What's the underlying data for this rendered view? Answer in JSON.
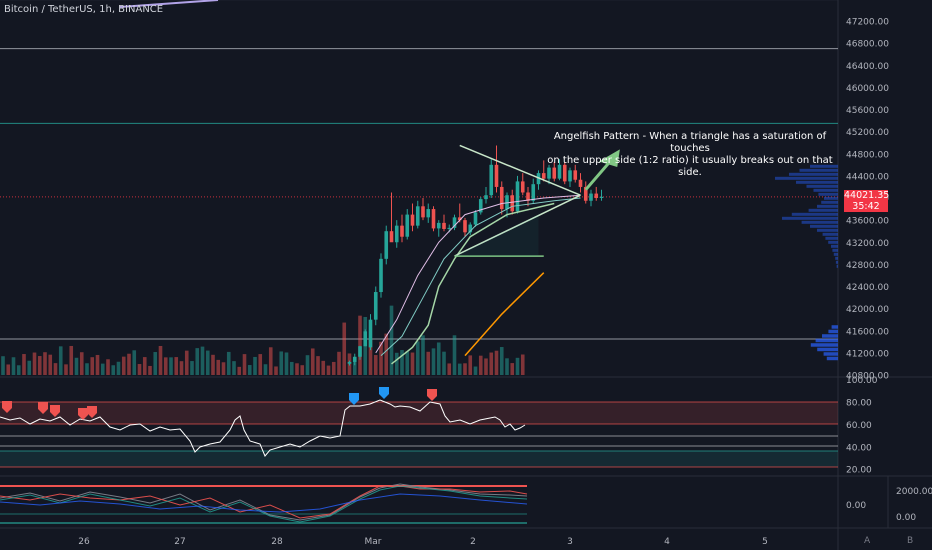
{
  "header": {
    "title": "Bitcoin / TetherUS, 1h, BINANCE"
  },
  "annotation": {
    "line1": "Angelfish Pattern - When a triangle has a saturation of touches",
    "line2": "on the upper side (1:2 ratio) it usually breaks out on that side."
  },
  "price_tag": {
    "price": "44021.35",
    "countdown": "35:42"
  },
  "controls": {
    "auto": "A",
    "bottom": "B"
  },
  "colors": {
    "background": "#131722",
    "up": "#26a69a",
    "down": "#ef5350",
    "accent_red": "#f23645",
    "rsi_line": "#ffffff",
    "triangle": "#c8e6c9"
  },
  "chart_data": [
    {
      "type": "candlestick",
      "symbol": "Bitcoin / TetherUS",
      "interval": "1h",
      "exchange": "BINANCE",
      "y_axis_ticks": [
        "47200.00",
        "46800.00",
        "46400.00",
        "46000.00",
        "45600.00",
        "45200.00",
        "44800.00",
        "44400.00",
        "44000.00",
        "43600.00",
        "43200.00",
        "42800.00",
        "42400.00",
        "42000.00",
        "41600.00",
        "41200.00",
        "40800.00"
      ],
      "ylim": [
        40800,
        47400
      ],
      "x_axis_ticks": [
        "26",
        "27",
        "28",
        "Mar",
        "2",
        "3",
        "4",
        "5"
      ],
      "last_price": 44021.35,
      "horizontal_levels": [
        46700,
        45350,
        41450
      ],
      "candles": [
        [
          43440,
          43520,
          43380,
          43460
        ],
        [
          43460,
          43700,
          43420,
          43650
        ],
        [
          43650,
          43900,
          43560,
          43600
        ],
        [
          43600,
          43640,
          43300,
          43380
        ],
        [
          43380,
          43560,
          43330,
          43520
        ],
        [
          43520,
          43780,
          43480,
          43740
        ],
        [
          43740,
          44020,
          43700,
          43980
        ],
        [
          43980,
          44200,
          43900,
          44050
        ],
        [
          44050,
          44700,
          44000,
          44600
        ],
        [
          44600,
          44950,
          44100,
          44200
        ],
        [
          44200,
          44300,
          43700,
          43800
        ],
        [
          43800,
          44100,
          43650,
          44050
        ],
        [
          44050,
          44150,
          43700,
          43760
        ],
        [
          43760,
          44400,
          43720,
          44300
        ],
        [
          44300,
          44450,
          44050,
          44100
        ],
        [
          44100,
          44200,
          43850,
          43950
        ],
        [
          43950,
          44350,
          43900,
          44250
        ],
        [
          44250,
          44500,
          44150,
          44450
        ],
        [
          44450,
          44680,
          44300,
          44350
        ],
        [
          44350,
          44600,
          44250,
          44550
        ],
        [
          44550,
          44650,
          44300,
          44350
        ],
        [
          44350,
          44700,
          44320,
          44600
        ],
        [
          44600,
          44650,
          44250,
          44300
        ],
        [
          44300,
          44550,
          44200,
          44500
        ],
        [
          44500,
          44600,
          44280,
          44330
        ],
        [
          44330,
          44450,
          44100,
          44200
        ],
        [
          44200,
          44300,
          43900,
          43950
        ],
        [
          43950,
          44150,
          43850,
          44080
        ],
        [
          44080,
          44200,
          43950,
          44000
        ],
        [
          44000,
          44150,
          43950,
          44021
        ]
      ],
      "candles_first_index": 85,
      "candles_note_ohlc": "open,high,low,close",
      "trendline_upper": {
        "from": {
          "bar": 87,
          "price": 44950
        },
        "to": {
          "bar": 110,
          "price": 44050
        }
      },
      "trendline_lower": {
        "from": {
          "bar": 86,
          "price": 42950
        },
        "to": {
          "bar": 110,
          "price": 44050
        }
      },
      "support_line": {
        "from_bar": 86,
        "to_bar": 103,
        "price": 42950
      },
      "moving_average_orange": [
        [
          88,
          41150
        ],
        [
          95,
          41900
        ],
        [
          103,
          42650
        ]
      ],
      "volume_profile_side": "right"
    },
    {
      "type": "line",
      "name": "RSI panel",
      "y_axis_ticks": [
        "100.00",
        "80.00",
        "60.00",
        "40.00",
        "20.00"
      ],
      "ylim": [
        15,
        100
      ],
      "bands": [
        {
          "from": 63,
          "to": 80,
          "color": "#ef5350"
        },
        {
          "from": 22,
          "to": 37,
          "color": "#26a69a"
        }
      ],
      "marker_colors": {
        "red": "#ef5350",
        "blue": "#2196f3"
      }
    },
    {
      "type": "line",
      "name": "Oscillator panel",
      "y_axis_ticks": [
        "2000.00",
        "0.00",
        "0.00"
      ]
    }
  ]
}
